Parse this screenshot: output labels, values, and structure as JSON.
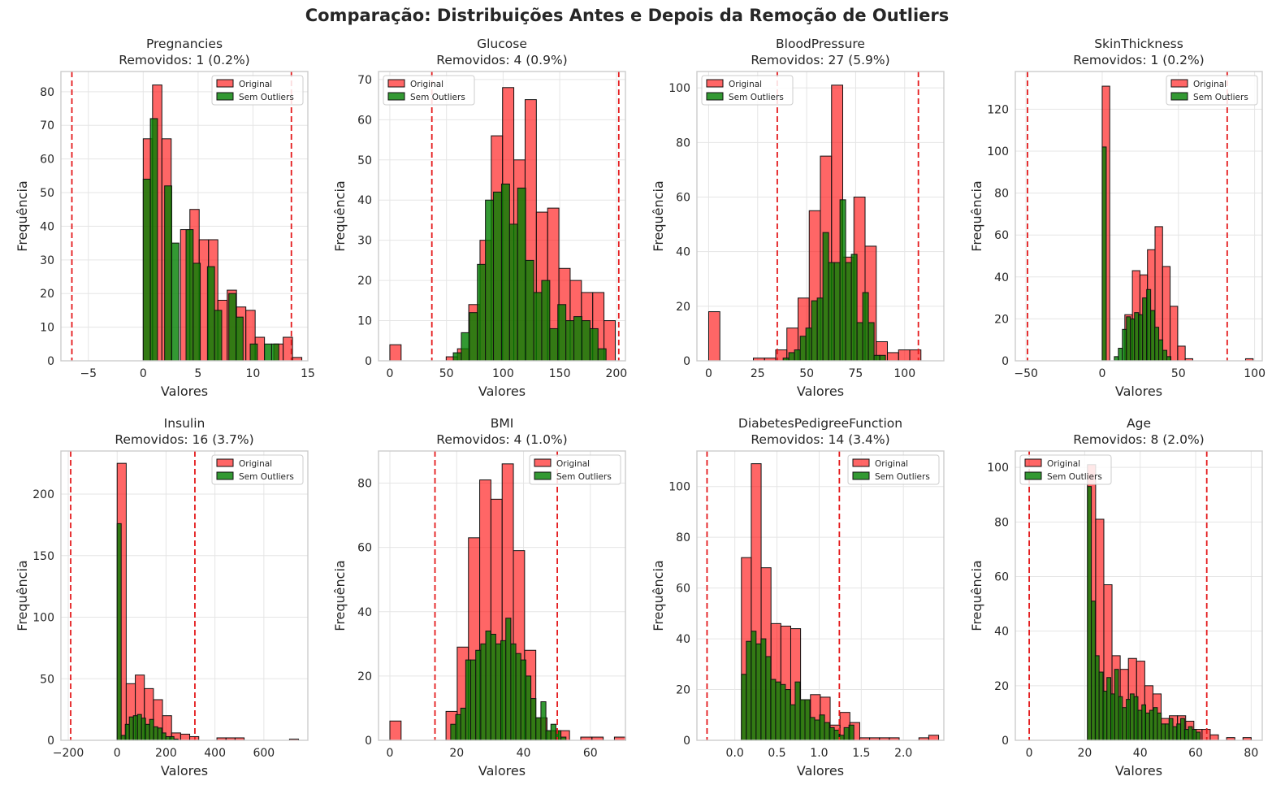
{
  "figure": {
    "title": "Comparação: Distribuições Antes e Depois da Remoção de Outliers",
    "colors": {
      "original": "#ff0000",
      "sem_outliers": "#008000",
      "limit_line": "#e41a1c",
      "grid": "#e5e5e5",
      "spine": "#cccccc"
    }
  },
  "chart_data": [
    {
      "type": "bar",
      "title": "Pregnancies",
      "subtitle": "Removidos: 1 (0.2%)",
      "xlabel": "Valores",
      "ylabel": "Frequência",
      "xlim": [
        -7.5,
        15.0
      ],
      "ylim": [
        0,
        86
      ],
      "xticks": [
        -5,
        0,
        5,
        10,
        15
      ],
      "yticks": [
        0,
        10,
        20,
        30,
        40,
        50,
        60,
        70,
        80
      ],
      "legend": "top-right",
      "limits": [
        -6.5,
        13.5
      ],
      "series": [
        {
          "name": "Original",
          "bin_start": 0,
          "bin_width": 0.85,
          "values": [
            66,
            82,
            66,
            0,
            39,
            45,
            36,
            36,
            18,
            21,
            16,
            15,
            7,
            0,
            5,
            7,
            1
          ]
        },
        {
          "name": "Sem Outliers",
          "bin_start": 0,
          "bin_width": 0.65,
          "values": [
            54,
            72,
            0,
            52,
            35,
            0,
            39,
            29,
            0,
            28,
            15,
            0,
            20,
            13,
            0,
            5,
            0,
            5,
            5
          ]
        }
      ]
    },
    {
      "type": "bar",
      "title": "Glucose",
      "subtitle": "Removidos: 4 (0.9%)",
      "xlabel": "Valores",
      "ylabel": "Frequência",
      "xlim": [
        -10,
        208
      ],
      "ylim": [
        0,
        72
      ],
      "xticks": [
        0,
        50,
        100,
        150,
        200
      ],
      "yticks": [
        0,
        10,
        20,
        30,
        40,
        50,
        60,
        70
      ],
      "legend": "top-left",
      "limits": [
        37.1,
        202.1
      ],
      "series": [
        {
          "name": "Original",
          "bin_start": 0,
          "bin_width": 9.95,
          "values": [
            4,
            0,
            0,
            0,
            0,
            1,
            3,
            14,
            30,
            56,
            68,
            50,
            65,
            37,
            38,
            23,
            20,
            17,
            17,
            10
          ]
        },
        {
          "name": "Sem Outliers",
          "bin_start": 56,
          "bin_width": 7.1,
          "values": [
            2,
            7,
            12,
            24,
            40,
            42,
            44,
            34,
            43,
            25,
            17,
            20,
            8,
            14,
            10,
            11,
            10,
            8,
            3
          ]
        }
      ]
    },
    {
      "type": "bar",
      "title": "BloodPressure",
      "subtitle": "Removidos: 27 (5.9%)",
      "xlabel": "Valores",
      "ylabel": "Frequência",
      "xlim": [
        -6,
        120
      ],
      "ylim": [
        0,
        106
      ],
      "xticks": [
        0,
        25,
        50,
        75,
        100
      ],
      "yticks": [
        0,
        20,
        40,
        60,
        80,
        100
      ],
      "legend": "top-left",
      "limits": [
        35,
        107
      ],
      "series": [
        {
          "name": "Original",
          "bin_start": 0,
          "bin_width": 5.7,
          "values": [
            18,
            0,
            0,
            0,
            1,
            1,
            4,
            12,
            23,
            55,
            75,
            101,
            38,
            60,
            42,
            7,
            3,
            4,
            4,
            0
          ]
        },
        {
          "name": "Sem Outliers",
          "bin_start": 38,
          "bin_width": 2.9,
          "values": [
            1,
            3,
            4,
            9,
            12,
            22,
            23,
            47,
            36,
            36,
            59,
            36,
            39,
            14,
            25,
            14,
            2,
            2,
            0
          ]
        }
      ]
    },
    {
      "type": "bar",
      "title": "SkinThickness",
      "subtitle": "Removidos: 1 (0.2%)",
      "xlabel": "Valores",
      "ylabel": "Frequência",
      "xlim": [
        -57,
        105
      ],
      "ylim": [
        0,
        138
      ],
      "xticks": [
        -50,
        0,
        50,
        100
      ],
      "yticks": [
        0,
        20,
        40,
        60,
        80,
        100,
        120
      ],
      "legend": "top-right",
      "limits": [
        -49,
        82
      ],
      "series": [
        {
          "name": "Original",
          "bin_start": 0,
          "bin_width": 4.95,
          "values": [
            131,
            0,
            0,
            22,
            43,
            41,
            53,
            64,
            45,
            26,
            7,
            1,
            0,
            0,
            0,
            0,
            0,
            0,
            0,
            1
          ]
        },
        {
          "name": "Sem Outliers",
          "bin_start": 0,
          "bin_width": 2.65,
          "values": [
            102,
            0,
            0,
            2,
            6,
            15,
            21,
            20,
            23,
            22,
            30,
            34,
            24,
            16,
            10,
            5,
            2,
            0,
            0
          ]
        }
      ]
    },
    {
      "type": "bar",
      "title": "Insulin",
      "subtitle": "Removidos: 16 (3.7%)",
      "xlabel": "Valores",
      "ylabel": "Frequência",
      "xlim": [
        -230,
        780
      ],
      "ylim": [
        0,
        235
      ],
      "xticks": [
        -200,
        0,
        200,
        400,
        600
      ],
      "yticks": [
        0,
        50,
        100,
        150,
        200
      ],
      "legend": "top-right",
      "limits": [
        -190,
        318
      ],
      "series": [
        {
          "name": "Original",
          "bin_start": 0,
          "bin_width": 37.1,
          "values": [
            225,
            46,
            53,
            42,
            33,
            20,
            6,
            5,
            3,
            0,
            0,
            2,
            2,
            2,
            0,
            0,
            0,
            0,
            0,
            1
          ]
        },
        {
          "name": "Sem Outliers",
          "bin_start": 0,
          "bin_width": 16.6,
          "values": [
            176,
            4,
            13,
            19,
            20,
            21,
            18,
            13,
            17,
            11,
            10,
            6,
            3,
            3,
            1,
            0
          ]
        }
      ]
    },
    {
      "type": "bar",
      "title": "BMI",
      "subtitle": "Removidos: 4 (1.0%)",
      "xlabel": "Valores",
      "ylabel": "Frequência",
      "xlim": [
        -3.4,
        70.5
      ],
      "ylim": [
        0,
        90
      ],
      "xticks": [
        0,
        20,
        40,
        60
      ],
      "yticks": [
        0,
        20,
        40,
        60,
        80
      ],
      "legend": "top-right",
      "limits": [
        13.5,
        50.1
      ],
      "series": [
        {
          "name": "Original",
          "bin_start": 0,
          "bin_width": 3.36,
          "values": [
            6,
            0,
            0,
            0,
            0,
            9,
            29,
            63,
            81,
            75,
            86,
            59,
            28,
            7,
            3,
            3,
            0,
            1,
            1,
            0,
            1
          ]
        },
        {
          "name": "Sem Outliers",
          "bin_start": 18.2,
          "bin_width": 1.5,
          "values": [
            5,
            8,
            10,
            25,
            25,
            28,
            30,
            34,
            33,
            30,
            31,
            38,
            30,
            27,
            25,
            20,
            13,
            7,
            12,
            3,
            5,
            3,
            1
          ]
        }
      ]
    },
    {
      "type": "bar",
      "title": "DiabetesPedigreeFunction",
      "subtitle": "Removidos: 14 (3.4%)",
      "xlabel": "Valores",
      "ylabel": "Frequência",
      "xlim": [
        -0.45,
        2.48
      ],
      "ylim": [
        0,
        114
      ],
      "xticks": [
        0.0,
        0.5,
        1.0,
        1.5,
        2.0
      ],
      "yticks": [
        0,
        20,
        40,
        60,
        80,
        100
      ],
      "legend": "top-right",
      "limits": [
        -0.33,
        1.24
      ],
      "series": [
        {
          "name": "Original",
          "bin_start": 0.078,
          "bin_width": 0.117,
          "values": [
            72,
            109,
            68,
            46,
            45,
            44,
            16,
            18,
            17,
            6,
            11,
            7,
            1,
            1,
            1,
            1,
            0,
            0,
            1,
            2
          ]
        },
        {
          "name": "Sem Outliers",
          "bin_start": 0.078,
          "bin_width": 0.058,
          "values": [
            26,
            39,
            43,
            38,
            40,
            33,
            24,
            23,
            22,
            20,
            14,
            23,
            16,
            16,
            9,
            8,
            10,
            7,
            5,
            4,
            2,
            5,
            6
          ]
        }
      ]
    },
    {
      "type": "bar",
      "title": "Age",
      "subtitle": "Removidos: 8 (2.0%)",
      "xlabel": "Valores",
      "ylabel": "Frequência",
      "xlim": [
        -5,
        84
      ],
      "ylim": [
        0,
        106
      ],
      "xticks": [
        0,
        20,
        40,
        60,
        80
      ],
      "yticks": [
        0,
        20,
        40,
        60,
        80,
        100
      ],
      "legend": "top-left",
      "limits": [
        0,
        64
      ],
      "series": [
        {
          "name": "Original",
          "bin_start": 21,
          "bin_width": 2.95,
          "values": [
            101,
            81,
            57,
            31,
            26,
            30,
            29,
            20,
            17,
            8,
            9,
            9,
            7,
            4,
            4,
            2,
            0,
            1,
            0,
            1
          ]
        },
        {
          "name": "Sem Outliers",
          "bin_start": 21,
          "bin_width": 1.4,
          "values": [
            93,
            51,
            31,
            25,
            18,
            23,
            17,
            26,
            16,
            12,
            15,
            17,
            16,
            11,
            13,
            10,
            11,
            12,
            10,
            6,
            6,
            8,
            5,
            6,
            8,
            4,
            5,
            4,
            3
          ]
        }
      ]
    }
  ]
}
